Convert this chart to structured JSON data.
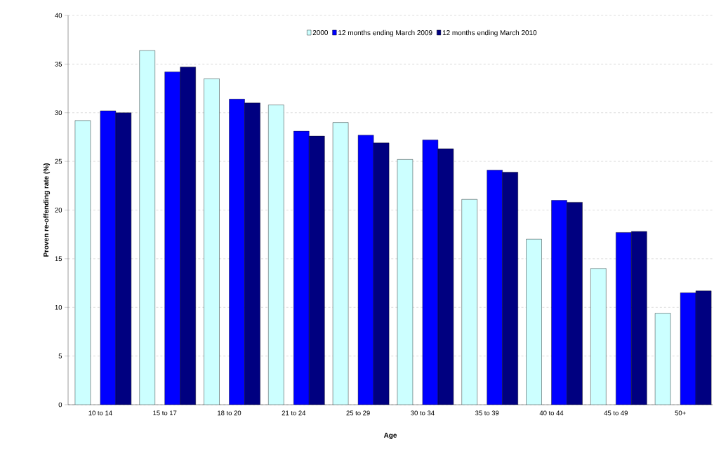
{
  "chart_data": {
    "type": "bar",
    "xlabel": "Age",
    "ylabel": "Proven re-offending rate (%)",
    "categories": [
      "10 to 14",
      "15 to 17",
      "18 to 20",
      "21 to 24",
      "25 to 29",
      "30 to 34",
      "35 to 39",
      "40 to 44",
      "45 to 49",
      "50+"
    ],
    "series": [
      {
        "name": "2000",
        "color": "#ccffff",
        "values": [
          29.2,
          36.4,
          33.5,
          30.8,
          29.0,
          25.2,
          21.1,
          17.0,
          14.0,
          9.4
        ]
      },
      {
        "name": "12 months ending March 2009",
        "color": "#0000ff",
        "values": [
          30.2,
          34.2,
          31.4,
          28.1,
          27.7,
          27.2,
          24.1,
          21.0,
          17.7,
          11.5
        ]
      },
      {
        "name": "12 months ending March 2010",
        "color": "#000080",
        "values": [
          30.0,
          34.7,
          31.0,
          27.6,
          26.9,
          26.3,
          23.9,
          20.8,
          17.8,
          11.7
        ]
      }
    ],
    "ylim": [
      0,
      40
    ],
    "yticks": [
      0,
      5,
      10,
      15,
      20,
      25,
      30,
      35,
      40
    ],
    "grid": "y",
    "legend": "top"
  }
}
